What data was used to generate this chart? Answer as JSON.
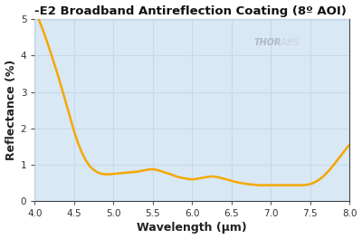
{
  "title": "-E2 Broadband Antireflection Coating (8º AOI)",
  "xlabel": "Wavelength (μm)",
  "ylabel": "Reflectance (%)",
  "xlim": [
    4.0,
    8.0
  ],
  "ylim": [
    0,
    5
  ],
  "xticks": [
    4.0,
    4.5,
    5.0,
    5.5,
    6.0,
    6.5,
    7.0,
    7.5,
    8.0
  ],
  "yticks": [
    0,
    1,
    2,
    3,
    4,
    5
  ],
  "bg_color": "#d8e8f5",
  "shaded_region_start": 4.5,
  "line_color": "#f5a800",
  "line_width": 1.8,
  "watermark_bold": "THOR",
  "watermark_light": "LABS",
  "grid_color": "#c8d8e8",
  "outer_bg": "#ffffff",
  "curve_x": [
    4.05,
    4.1,
    4.15,
    4.2,
    4.25,
    4.3,
    4.35,
    4.4,
    4.45,
    4.5,
    4.55,
    4.6,
    4.65,
    4.7,
    4.75,
    4.8,
    4.85,
    4.9,
    4.95,
    5.0,
    5.05,
    5.1,
    5.15,
    5.2,
    5.25,
    5.3,
    5.35,
    5.4,
    5.45,
    5.5,
    5.55,
    5.6,
    5.65,
    5.7,
    5.75,
    5.8,
    5.85,
    5.9,
    5.95,
    6.0,
    6.05,
    6.1,
    6.15,
    6.2,
    6.25,
    6.3,
    6.35,
    6.4,
    6.45,
    6.5,
    6.55,
    6.6,
    6.65,
    6.7,
    6.75,
    6.8,
    6.85,
    6.9,
    6.95,
    7.0,
    7.05,
    7.1,
    7.15,
    7.2,
    7.25,
    7.3,
    7.35,
    7.4,
    7.45,
    7.5,
    7.55,
    7.6,
    7.65,
    7.7,
    7.75,
    7.8,
    7.85,
    7.9,
    7.95,
    8.0
  ],
  "curve_y": [
    5.0,
    4.72,
    4.42,
    4.1,
    3.76,
    3.42,
    3.05,
    2.68,
    2.3,
    1.92,
    1.6,
    1.33,
    1.12,
    0.96,
    0.86,
    0.79,
    0.75,
    0.74,
    0.74,
    0.75,
    0.76,
    0.77,
    0.78,
    0.79,
    0.8,
    0.81,
    0.83,
    0.85,
    0.87,
    0.88,
    0.86,
    0.83,
    0.79,
    0.76,
    0.72,
    0.68,
    0.65,
    0.63,
    0.61,
    0.6,
    0.61,
    0.63,
    0.65,
    0.67,
    0.68,
    0.67,
    0.65,
    0.62,
    0.59,
    0.56,
    0.53,
    0.51,
    0.49,
    0.47,
    0.46,
    0.45,
    0.44,
    0.44,
    0.44,
    0.44,
    0.44,
    0.44,
    0.44,
    0.44,
    0.44,
    0.44,
    0.44,
    0.44,
    0.45,
    0.47,
    0.51,
    0.57,
    0.65,
    0.75,
    0.87,
    1.0,
    1.14,
    1.28,
    1.42,
    1.56
  ]
}
